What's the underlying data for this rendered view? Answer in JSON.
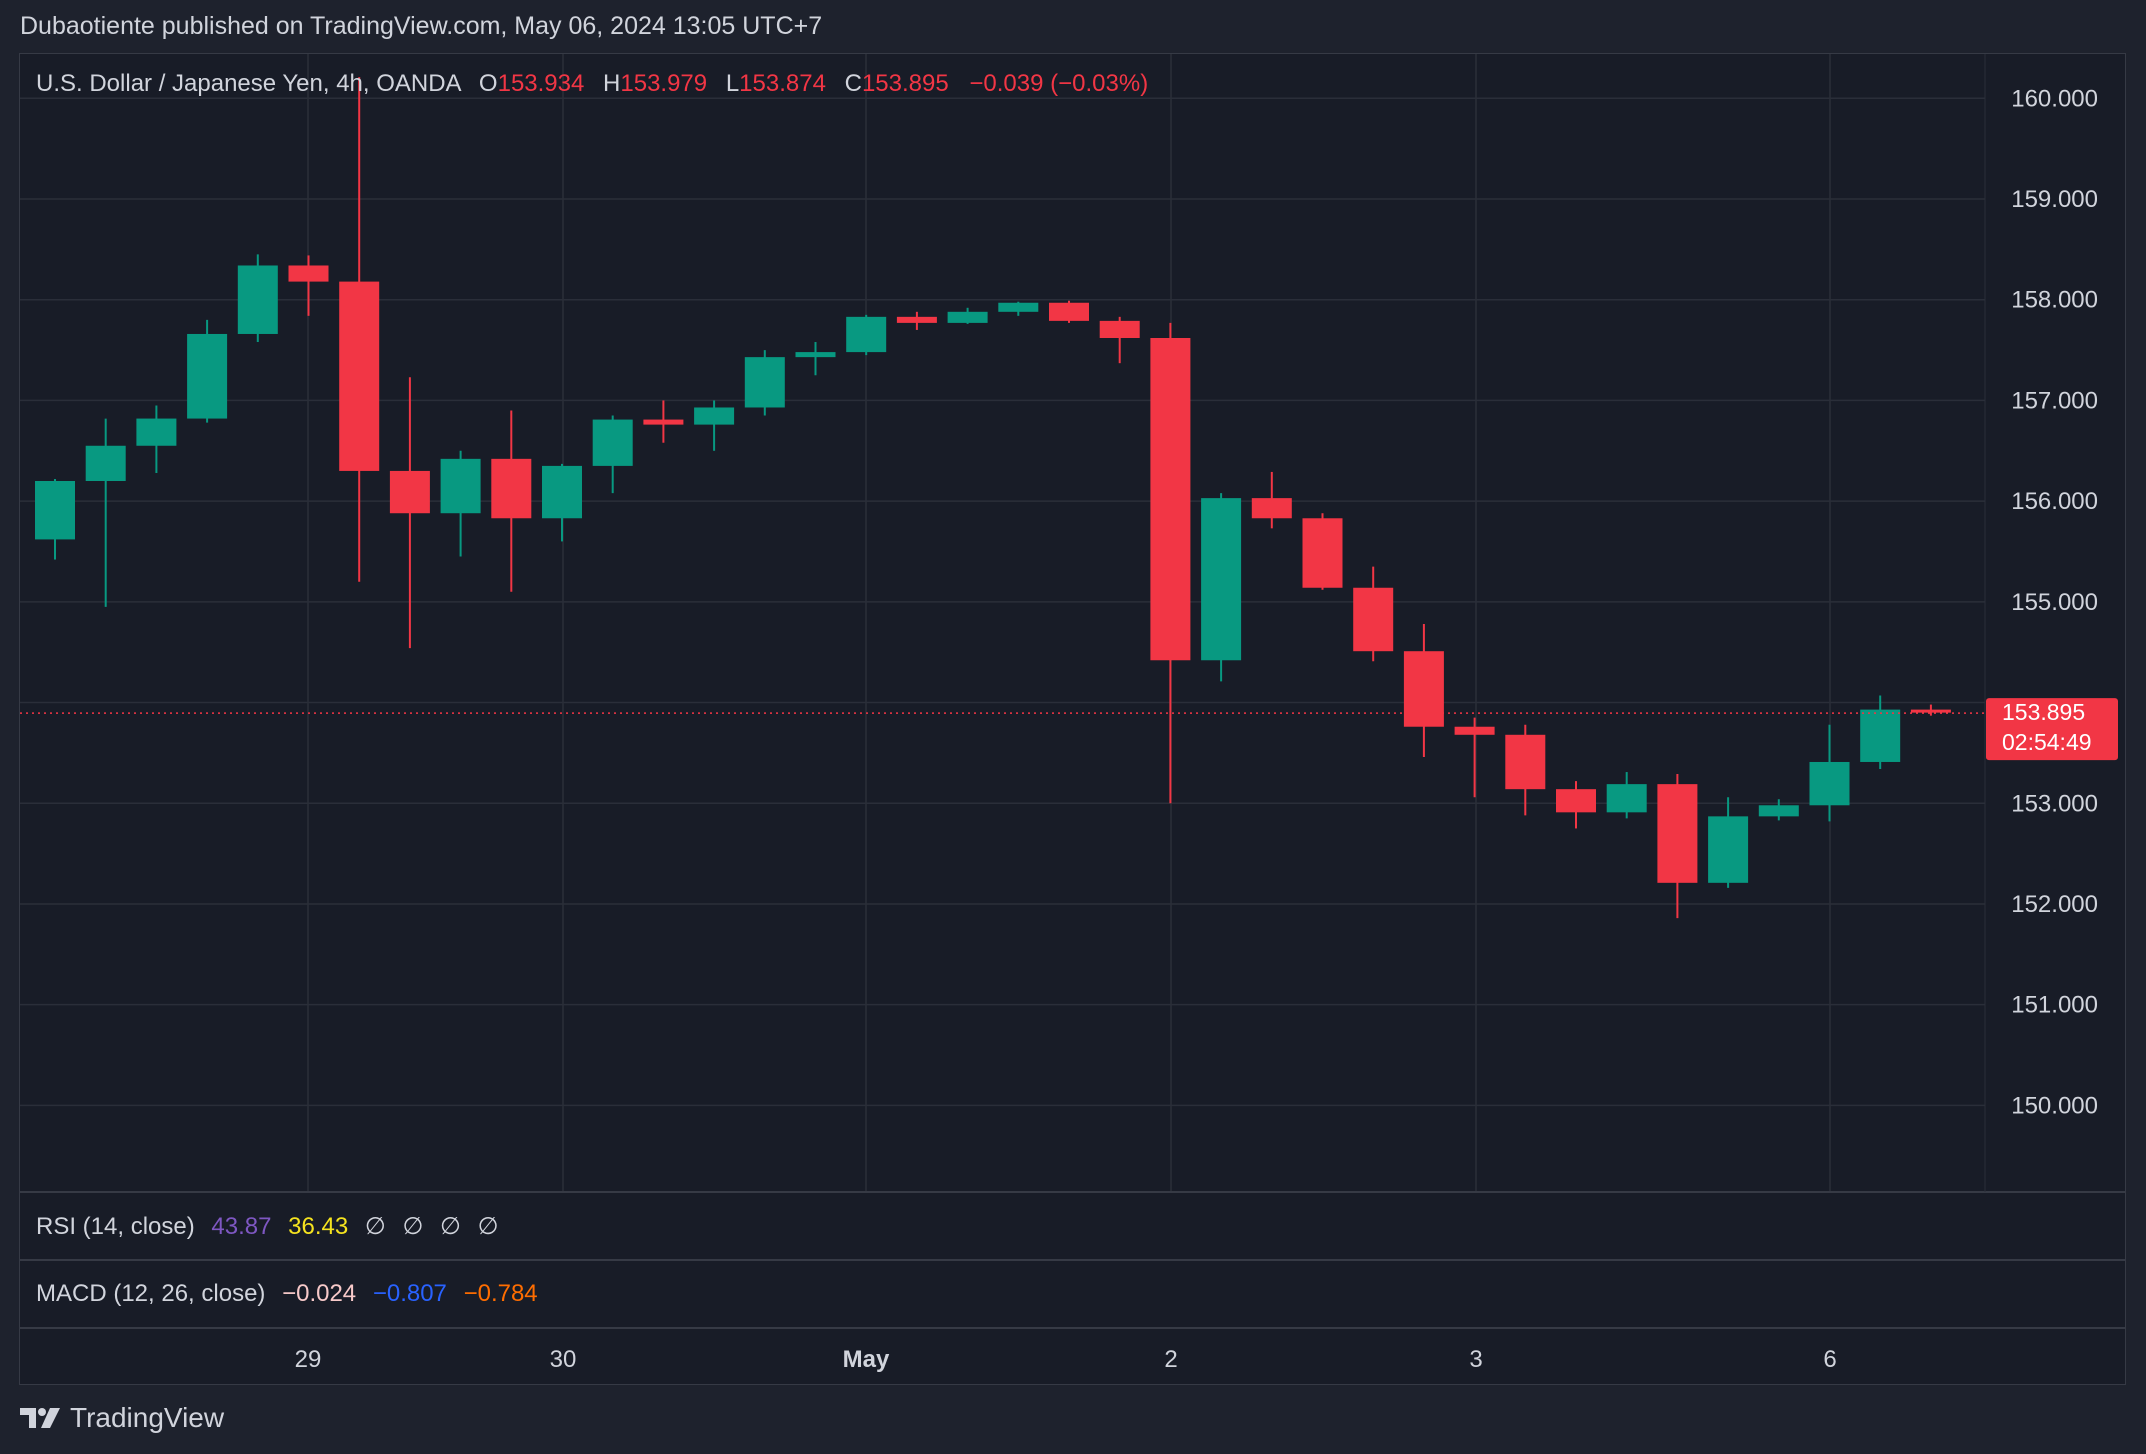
{
  "header": {
    "text": "Dubaotiente published on TradingView.com, May 06, 2024 13:05 UTC+7"
  },
  "legend": {
    "symbol": "U.S. Dollar / Japanese Yen, 4h, OANDA",
    "o_label": "O",
    "o_value": "153.934",
    "h_label": "H",
    "h_value": "153.979",
    "l_label": "L",
    "l_value": "153.874",
    "c_label": "C",
    "c_value": "153.895",
    "change": "−0.039 (−0.03%)"
  },
  "price_tag": {
    "price": "153.895",
    "countdown": "02:54:49"
  },
  "rsi": {
    "label": "RSI (14, close)",
    "v1": "43.87",
    "v2": "36.43",
    "na": [
      "∅",
      "∅",
      "∅",
      "∅"
    ]
  },
  "macd": {
    "label": "MACD (12, 26, close)",
    "v1": "−0.024",
    "v2": "−0.807",
    "v3": "−0.784"
  },
  "footer": {
    "brand": "TradingView"
  },
  "colors": {
    "up": "#089981",
    "down": "#f23645",
    "rsi": "#7e57c2",
    "rsi2": "#f5e31f",
    "macd_hist": "#f7c9c9",
    "macd_line": "#2962ff",
    "signal": "#ff6d00"
  },
  "chart_data": {
    "type": "candlestick",
    "title": "U.S. Dollar / Japanese Yen, 4h, OANDA",
    "y_axis": {
      "min": 149.1,
      "max": 160.4,
      "ticks": [
        "150.000",
        "151.000",
        "152.000",
        "153.000",
        "155.000",
        "156.000",
        "157.000",
        "158.000",
        "159.000",
        "160.000"
      ]
    },
    "x_axis": {
      "ticks": [
        "29",
        "30",
        "May",
        "2",
        "3",
        "6"
      ]
    },
    "last_price": 153.895,
    "candles": [
      {
        "o": 155.62,
        "h": 156.22,
        "l": 155.42,
        "c": 156.2
      },
      {
        "o": 156.2,
        "h": 156.82,
        "l": 154.95,
        "c": 156.55
      },
      {
        "o": 156.55,
        "h": 156.95,
        "l": 156.28,
        "c": 156.82
      },
      {
        "o": 156.82,
        "h": 157.8,
        "l": 156.78,
        "c": 157.66
      },
      {
        "o": 157.66,
        "h": 158.45,
        "l": 157.58,
        "c": 158.34
      },
      {
        "o": 158.34,
        "h": 158.44,
        "l": 157.84,
        "c": 158.18
      },
      {
        "o": 158.18,
        "h": 160.21,
        "l": 155.2,
        "c": 156.3
      },
      {
        "o": 156.3,
        "h": 157.23,
        "l": 154.54,
        "c": 155.88
      },
      {
        "o": 155.88,
        "h": 156.5,
        "l": 155.45,
        "c": 156.42
      },
      {
        "o": 156.42,
        "h": 156.9,
        "l": 155.1,
        "c": 155.83
      },
      {
        "o": 155.83,
        "h": 156.37,
        "l": 155.6,
        "c": 156.35
      },
      {
        "o": 156.35,
        "h": 156.85,
        "l": 156.08,
        "c": 156.81
      },
      {
        "o": 156.81,
        "h": 157.0,
        "l": 156.58,
        "c": 156.76
      },
      {
        "o": 156.76,
        "h": 157.0,
        "l": 156.5,
        "c": 156.93
      },
      {
        "o": 156.93,
        "h": 157.5,
        "l": 156.85,
        "c": 157.43
      },
      {
        "o": 157.43,
        "h": 157.58,
        "l": 157.25,
        "c": 157.48
      },
      {
        "o": 157.48,
        "h": 157.85,
        "l": 157.45,
        "c": 157.83
      },
      {
        "o": 157.83,
        "h": 157.88,
        "l": 157.7,
        "c": 157.77
      },
      {
        "o": 157.77,
        "h": 157.92,
        "l": 157.76,
        "c": 157.88
      },
      {
        "o": 157.88,
        "h": 157.98,
        "l": 157.84,
        "c": 157.97
      },
      {
        "o": 157.97,
        "h": 157.99,
        "l": 157.77,
        "c": 157.79
      },
      {
        "o": 157.79,
        "h": 157.83,
        "l": 157.37,
        "c": 157.62
      },
      {
        "o": 157.62,
        "h": 157.77,
        "l": 153.0,
        "c": 154.42
      },
      {
        "o": 154.42,
        "h": 156.08,
        "l": 154.21,
        "c": 156.03
      },
      {
        "o": 156.03,
        "h": 156.29,
        "l": 155.73,
        "c": 155.83
      },
      {
        "o": 155.83,
        "h": 155.88,
        "l": 155.12,
        "c": 155.14
      },
      {
        "o": 155.14,
        "h": 155.35,
        "l": 154.41,
        "c": 154.51
      },
      {
        "o": 154.51,
        "h": 154.78,
        "l": 153.46,
        "c": 153.76
      },
      {
        "o": 153.76,
        "h": 153.85,
        "l": 153.06,
        "c": 153.68
      },
      {
        "o": 153.68,
        "h": 153.78,
        "l": 152.88,
        "c": 153.14
      },
      {
        "o": 153.14,
        "h": 153.22,
        "l": 152.75,
        "c": 152.91
      },
      {
        "o": 152.91,
        "h": 153.31,
        "l": 152.85,
        "c": 153.19
      },
      {
        "o": 153.19,
        "h": 153.29,
        "l": 151.86,
        "c": 152.21
      },
      {
        "o": 152.21,
        "h": 153.06,
        "l": 152.16,
        "c": 152.87
      },
      {
        "o": 152.87,
        "h": 153.04,
        "l": 152.83,
        "c": 152.98
      },
      {
        "o": 152.98,
        "h": 153.78,
        "l": 152.82,
        "c": 153.41
      },
      {
        "o": 153.41,
        "h": 154.07,
        "l": 153.34,
        "c": 153.93
      },
      {
        "o": 153.93,
        "h": 153.98,
        "l": 153.87,
        "c": 153.9
      }
    ]
  }
}
